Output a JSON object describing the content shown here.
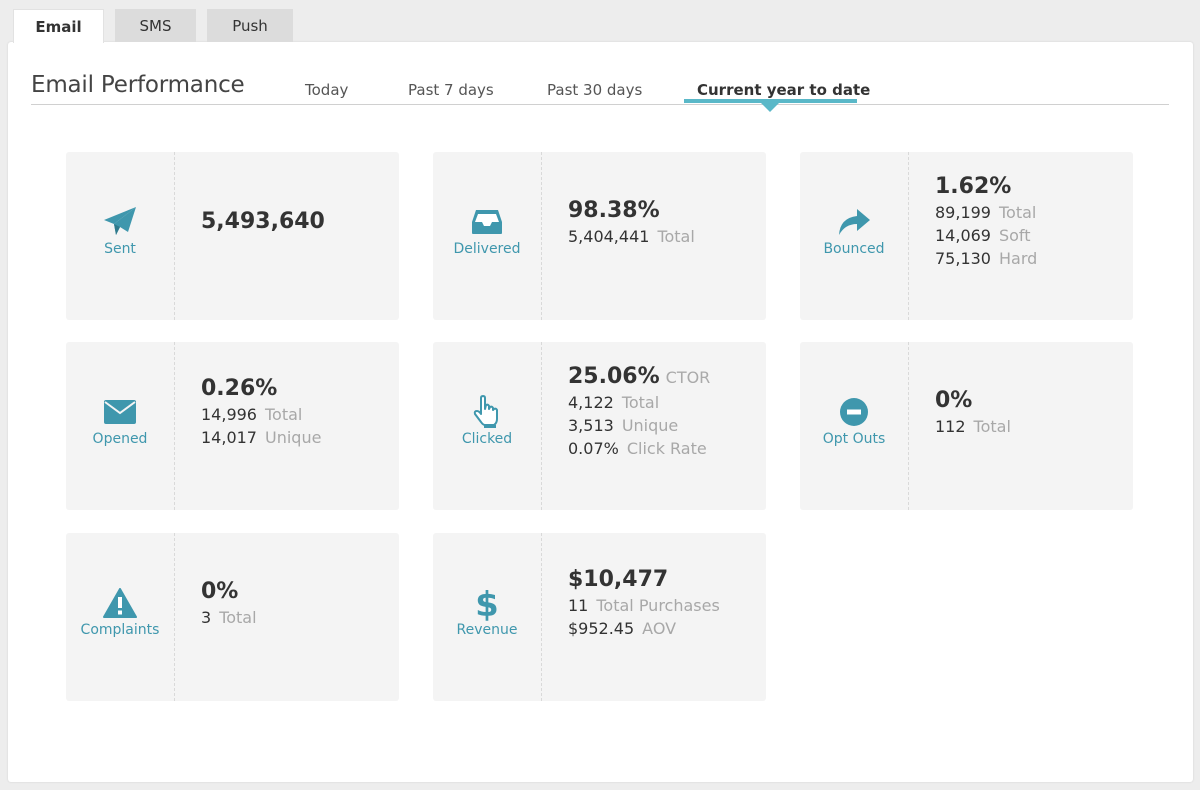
{
  "tabs": [
    {
      "label": "Email",
      "active": true
    },
    {
      "label": "SMS",
      "active": false
    },
    {
      "label": "Push",
      "active": false
    }
  ],
  "header": {
    "title": "Email Performance",
    "ranges": [
      "Today",
      "Past 7 days",
      "Past 30 days",
      "Current year to date"
    ],
    "active_range": "Current year to date"
  },
  "accent_color": "#5ab8c8",
  "icon_color": "#3f97ad",
  "cards": {
    "sent": {
      "label": "Sent",
      "icon": "paper-plane-icon",
      "value": "5,493,640"
    },
    "delivered": {
      "label": "Delivered",
      "icon": "inbox-icon",
      "value": "98.38%",
      "lines": [
        {
          "num": "5,404,441",
          "text": "Total"
        }
      ]
    },
    "bounced": {
      "label": "Bounced",
      "icon": "share-arrow-icon",
      "value": "1.62%",
      "lines": [
        {
          "num": "89,199",
          "text": "Total"
        },
        {
          "num": "14,069",
          "text": "Soft"
        },
        {
          "num": "75,130",
          "text": "Hard"
        }
      ]
    },
    "opened": {
      "label": "Opened",
      "icon": "envelope-icon",
      "value": "0.26%",
      "lines": [
        {
          "num": "14,996",
          "text": "Total"
        },
        {
          "num": "14,017",
          "text": "Unique"
        }
      ]
    },
    "clicked": {
      "label": "Clicked",
      "icon": "pointer-hand-icon",
      "value": "25.06%",
      "suffix": "CTOR",
      "lines": [
        {
          "num": "4,122",
          "text": "Total"
        },
        {
          "num": "3,513",
          "text": "Unique"
        },
        {
          "num": "0.07%",
          "text": "Click Rate"
        }
      ]
    },
    "optouts": {
      "label": "Opt Outs",
      "icon": "minus-circle-icon",
      "value": "0%",
      "lines": [
        {
          "num": "112",
          "text": "Total"
        }
      ]
    },
    "complaints": {
      "label": "Complaints",
      "icon": "warning-icon",
      "value": "0%",
      "lines": [
        {
          "num": "3",
          "text": "Total"
        }
      ]
    },
    "revenue": {
      "label": "Revenue",
      "icon": "dollar-icon",
      "value": "$10,477",
      "lines": [
        {
          "num": "11",
          "text": "Total Purchases"
        },
        {
          "num": "$952.45",
          "text": "AOV"
        }
      ]
    }
  }
}
